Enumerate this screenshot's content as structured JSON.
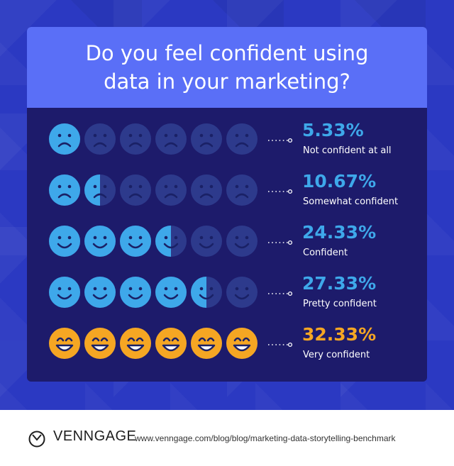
{
  "title": "Do you feel confident using data in your marketing?",
  "colors": {
    "header": "#5a6ff7",
    "panel": "#1d1b6b",
    "face_active_blue": "#3ea8ea",
    "face_inactive": "#2d3a8c",
    "face_active_orange": "#f5a623",
    "value_text": "#3ea8ea",
    "value_text_highlight": "#f5a623"
  },
  "chart_data": {
    "type": "pictograph",
    "icons_per_row": 6,
    "rows": [
      {
        "value_label": "5.33%",
        "value": 5.33,
        "label": "Not confident at all",
        "face": "sad",
        "filled": 1.0
      },
      {
        "value_label": "10.67%",
        "value": 10.67,
        "label": "Somewhat confident",
        "face": "sad",
        "filled": 1.5
      },
      {
        "value_label": "24.33%",
        "value": 24.33,
        "label": "Confident",
        "face": "smile",
        "filled": 3.5
      },
      {
        "value_label": "27.33%",
        "value": 27.33,
        "label": "Pretty confident",
        "face": "smile",
        "filled": 4.5
      },
      {
        "value_label": "32.33%",
        "value": 32.33,
        "label": "Very confident",
        "face": "grin",
        "filled": 6
      }
    ]
  },
  "footer": {
    "brand": "VENNGAGE",
    "url": "www.venngage.com/blog/blog/marketing-data-storytelling-benchmark",
    "logo_icon": "venngage-logo-icon"
  }
}
